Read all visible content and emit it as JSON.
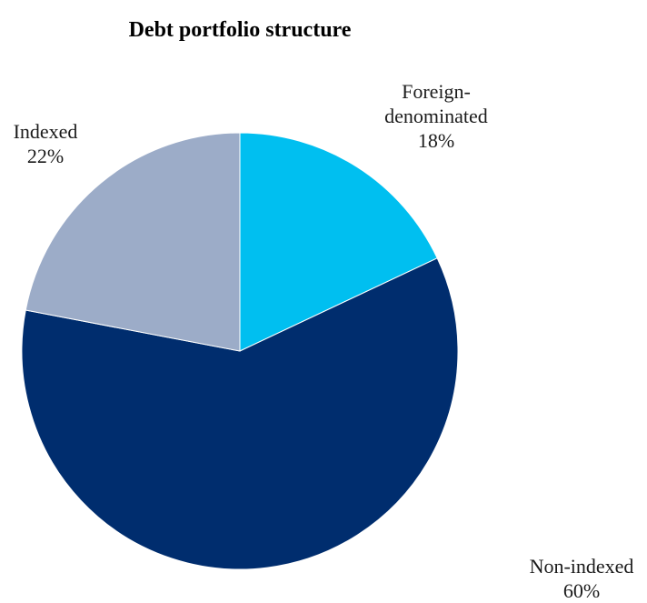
{
  "chart_data": {
    "type": "pie",
    "title": "Debt portfolio structure",
    "start_angle_deg": 0,
    "direction": "clockwise",
    "slices": [
      {
        "label_lines": [
          "Foreign-",
          "denominated"
        ],
        "value_label": "18%",
        "value": 18,
        "color": "#00BFF0",
        "key": "foreign"
      },
      {
        "label_lines": [
          "Non-indexed"
        ],
        "value_label": "60%",
        "value": 60,
        "color": "#002D6E",
        "key": "nonindexed"
      },
      {
        "label_lines": [
          "Indexed"
        ],
        "value_label": "22%",
        "value": 22,
        "color": "#9CACC8",
        "key": "indexed"
      }
    ]
  }
}
